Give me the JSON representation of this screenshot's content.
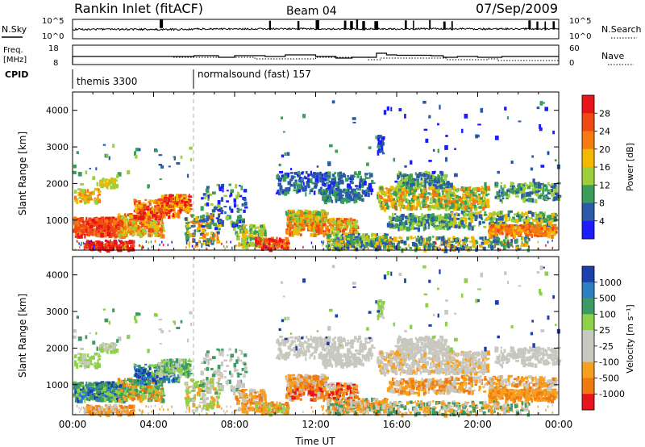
{
  "header": {
    "station": "Rankin Inlet (fitACF)",
    "beam": "Beam 04",
    "date": "07/Sep/2009"
  },
  "noise_panel": {
    "left_label": "N.Sky",
    "right_label": "N.Search",
    "left_ticks": [
      "10^5",
      "10^0"
    ],
    "right_ticks": [
      "10^5",
      "10^0"
    ]
  },
  "freq_panel": {
    "left_label_1": "Freq.",
    "left_label_2": "[MHz]",
    "right_label": "Nave",
    "left_ticks": [
      18,
      8
    ],
    "right_ticks": [
      60,
      0
    ]
  },
  "cpid_panel": {
    "label": "CPID",
    "modes": [
      {
        "name": "themis 3300",
        "start_hour": 0
      },
      {
        "name": "normalsound (fast) 157",
        "start_hour": 6
      }
    ]
  },
  "chart_data": [
    {
      "type": "heatmap",
      "title": "",
      "xlabel": "",
      "ylabel": "Slant Range [km]",
      "xlim": [
        0,
        24
      ],
      "ylim": [
        180,
        4500
      ],
      "y_ticks": [
        1000,
        2000,
        3000,
        4000
      ],
      "colorbar": {
        "label": "Power [dB]",
        "ticks": [
          "28",
          "24",
          "20",
          "16",
          "12",
          "8",
          "4"
        ],
        "colors": [
          "#e8141b",
          "#f04a14",
          "#f57a10",
          "#f5b800",
          "#9ccf3a",
          "#3a9e5a",
          "#2b5aa8",
          "#1c1cff"
        ]
      }
    },
    {
      "type": "heatmap",
      "title": "",
      "xlabel": "Time UT",
      "ylabel": "Slant Range [km]",
      "xlim": [
        0,
        24
      ],
      "ylim": [
        180,
        4500
      ],
      "y_ticks": [
        1000,
        2000,
        3000,
        4000
      ],
      "x_ticks": [
        "00:00",
        "04:00",
        "08:00",
        "12:00",
        "16:00",
        "20:00",
        "00:00"
      ],
      "colorbar": {
        "label": "Velocity [m s⁻¹]",
        "ticks": [
          "1000",
          "500",
          "100",
          "25",
          "-25",
          "-100",
          "-500",
          "-1000"
        ],
        "colors": [
          "#1c3fae",
          "#2e7fbf",
          "#3c9a63",
          "#8dd04a",
          "#c8c8c0",
          "#c8c8c0",
          "#f7a020",
          "#f07a10",
          "#e8141b"
        ]
      }
    }
  ]
}
